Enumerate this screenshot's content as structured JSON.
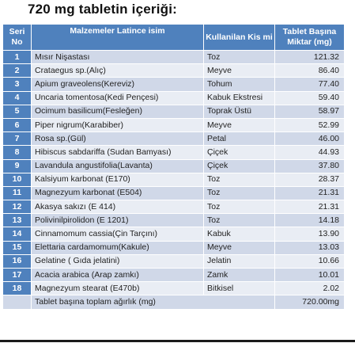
{
  "title": "720 mg tabletin içeriği:",
  "headers": {
    "no": "Seri No",
    "name": "Malzemeler Latince isim",
    "part": "Kullanilan Kis mi",
    "amount": "Tablet Başına Miktar (mg)"
  },
  "rows": [
    {
      "no": "1",
      "name": "Mısır Nişastası",
      "part": "Toz",
      "amount": "121.32"
    },
    {
      "no": "2",
      "name": "Crataegus sp.(Alıç)",
      "part": "Meyve",
      "amount": "86.40"
    },
    {
      "no": "3",
      "name": "Apium graveolens(Kereviz)",
      "part": "Tohum",
      "amount": "77.40"
    },
    {
      "no": "4",
      "name": "Uncaria tomentosa(Kedi Pençesi)",
      "part": "Kabuk Ekstresi",
      "amount": "59.40"
    },
    {
      "no": "5",
      "name": "Ocimum basilicum(Fesleğen)",
      "part": "Toprak Üstü",
      "amount": "58.97"
    },
    {
      "no": "6",
      "name": "Piper nigrum(Karabiber)",
      "part": "Meyve",
      "amount": "52.99"
    },
    {
      "no": "7",
      "name": "Rosa sp.(Gül)",
      "part": "Petal",
      "amount": "46.00"
    },
    {
      "no": "8",
      "name": "Hibiscus sabdariffa (Sudan Bamyası)",
      "part": "Çiçek",
      "amount": "44.93"
    },
    {
      "no": "9",
      "name": "Lavandula angustifolia(Lavanta)",
      "part": "Çiçek",
      "amount": "37.80"
    },
    {
      "no": "10",
      "name": "Kalsiyum karbonat (E170)",
      "part": "Toz",
      "amount": "28.37"
    },
    {
      "no": "11",
      "name": "Magnezyum karbonat (E504)",
      "part": "Toz",
      "amount": "21.31"
    },
    {
      "no": "12",
      "name": "Akasya sakızı (E 414)",
      "part": "Toz",
      "amount": "21.31"
    },
    {
      "no": "13",
      "name": "Polivinilpirolidon (E 1201)",
      "part": "Toz",
      "amount": "14.18"
    },
    {
      "no": "14",
      "name": "Cinnamomum cassia(Çin Tarçını)",
      "part": "Kabuk",
      "amount": "13.90"
    },
    {
      "no": "15",
      "name": "Elettaria cardamomum(Kakule)",
      "part": "Meyve",
      "amount": "13.03"
    },
    {
      "no": "16",
      "name": "Gelatine ( Gıda jelatini)",
      "part": "Jelatin",
      "amount": "10.66"
    },
    {
      "no": "17",
      "name": "Acacia arabica (Arap zamkı)",
      "part": "Zamk",
      "amount": "10.01"
    },
    {
      "no": "18",
      "name": "Magnezyum stearat (E470b)",
      "part": "Bitkisel",
      "amount": "2.02"
    }
  ],
  "total": {
    "label": "Tablet başına toplam ağırlık (mg)",
    "amount": "720.00mg"
  },
  "colors": {
    "header": "#4f81bd",
    "row_dark": "#d0d8e8",
    "row_light": "#e9edf4"
  }
}
